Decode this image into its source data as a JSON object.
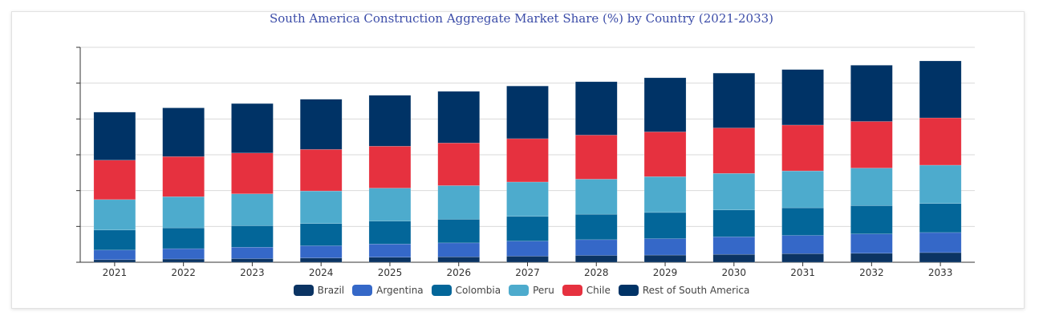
{
  "chart_data": {
    "type": "bar",
    "stacked": true,
    "title": "South America Construction Aggregate Market Share (%) by Country (2021-2033)",
    "xlabel": "",
    "ylabel": "",
    "ylim": [
      0,
      60
    ],
    "y_tick_step": 10,
    "y_tick_labels_shown": false,
    "grid": true,
    "legend_position": "bottom",
    "categories": [
      "2021",
      "2022",
      "2023",
      "2024",
      "2025",
      "2026",
      "2027",
      "2028",
      "2029",
      "2030",
      "2031",
      "2032",
      "2033"
    ],
    "series": [
      {
        "name": "Brazil",
        "color": "#0b3463",
        "values": [
          0.7,
          0.9,
          1.0,
          1.2,
          1.4,
          1.5,
          1.7,
          1.9,
          2.0,
          2.2,
          2.4,
          2.5,
          2.7
        ]
      },
      {
        "name": "Argentina",
        "color": "#3568c8",
        "values": [
          2.7,
          2.9,
          3.2,
          3.4,
          3.7,
          3.9,
          4.2,
          4.4,
          4.6,
          4.9,
          5.1,
          5.4,
          5.6
        ]
      },
      {
        "name": "Colombia",
        "color": "#036699",
        "values": [
          5.6,
          5.8,
          6.0,
          6.2,
          6.4,
          6.6,
          6.9,
          7.1,
          7.3,
          7.5,
          7.7,
          7.9,
          8.1
        ]
      },
      {
        "name": "Peru",
        "color": "#4dabcd",
        "values": [
          8.5,
          8.7,
          8.9,
          9.1,
          9.2,
          9.4,
          9.6,
          9.8,
          10.0,
          10.2,
          10.3,
          10.5,
          10.7
        ]
      },
      {
        "name": "Chile",
        "color": "#e6313f",
        "values": [
          11.0,
          11.2,
          11.4,
          11.6,
          11.7,
          11.9,
          12.1,
          12.3,
          12.5,
          12.7,
          12.8,
          13.0,
          13.2
        ]
      },
      {
        "name": "Rest of South America",
        "color": "#003366",
        "values": [
          13.4,
          13.6,
          13.8,
          14.0,
          14.2,
          14.4,
          14.7,
          14.9,
          15.1,
          15.3,
          15.5,
          15.7,
          15.9
        ]
      }
    ]
  }
}
